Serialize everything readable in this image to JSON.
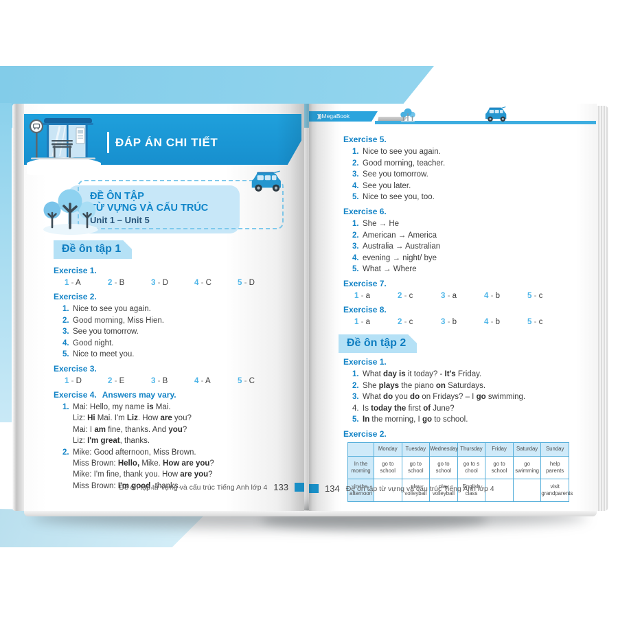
{
  "page_left": {
    "banner_title": "ĐÁP ÁN CHI TIẾT",
    "intro": {
      "line1": "ĐỀ ÔN TẬP",
      "line2": "TỪ VỰNG VÀ CẤU TRÚC",
      "line3": "Unit 1 – Unit 5"
    },
    "section_title": "Đề ôn tập 1",
    "exercises": [
      {
        "title": "Exercise 1.",
        "type": "answers",
        "answers": [
          {
            "n": "1",
            "v": "A"
          },
          {
            "n": "2",
            "v": "B"
          },
          {
            "n": "3",
            "v": "D"
          },
          {
            "n": "4",
            "v": "C"
          },
          {
            "n": "5",
            "v": "D"
          }
        ]
      },
      {
        "title": "Exercise 2.",
        "type": "list",
        "items": [
          {
            "n": "1.",
            "text": "Nice to see you again."
          },
          {
            "n": "2.",
            "text": "Good morning, Miss Hien."
          },
          {
            "n": "3.",
            "text": "See you tomorrow."
          },
          {
            "n": "4.",
            "text": "Good night."
          },
          {
            "n": "5.",
            "text": "Nice to meet you."
          }
        ]
      },
      {
        "title": "Exercise 3.",
        "type": "answers",
        "answers": [
          {
            "n": "1",
            "v": "D"
          },
          {
            "n": "2",
            "v": "E"
          },
          {
            "n": "3",
            "v": "B"
          },
          {
            "n": "4",
            "v": "A"
          },
          {
            "n": "5",
            "v": "C"
          }
        ]
      },
      {
        "title": "Exercise 4.",
        "note": "Answers may vary.",
        "type": "dialog",
        "items": [
          {
            "n": "1.",
            "lines": [
              "Mai: Hello, my name **is** Mai.",
              "Liz: **Hi** Mai. I'm **Liz**. How **are** you?",
              "Mai: I **am** fine, thanks. And **you**?",
              "Liz: **I'm great**, thanks."
            ]
          },
          {
            "n": "2.",
            "lines": [
              "Mike: Good afternoon, Miss Brown.",
              "Miss Brown: **Hello,** Mike. **How are you**?",
              "Mike: I'm fine, thank you. How **are you**?",
              "Miss Brown: **I'm good**, thanks."
            ]
          }
        ]
      }
    ],
    "footer": {
      "text": "Đề ôn tập từ vựng và cấu trúc Tiếng Anh lớp 4",
      "page_number": "133"
    }
  },
  "page_right": {
    "brand_prefix": ")))",
    "brand_name": "MegaBook",
    "exercises_top": [
      {
        "title": "Exercise 5.",
        "type": "list",
        "items": [
          {
            "n": "1.",
            "text": "Nice to see you again."
          },
          {
            "n": "2.",
            "text": "Good morning, teacher."
          },
          {
            "n": "3.",
            "text": "See you tomorrow."
          },
          {
            "n": "4.",
            "text": "See you later."
          },
          {
            "n": "5.",
            "text": "Nice to see you, too."
          }
        ]
      },
      {
        "title": "Exercise 6.",
        "type": "list",
        "items": [
          {
            "n": "1.",
            "text": "She → He"
          },
          {
            "n": "2.",
            "text": "American →  America"
          },
          {
            "n": "3.",
            "text": "Australia →  Australian"
          },
          {
            "n": "4.",
            "text": "evening →  night/ bye"
          },
          {
            "n": "5.",
            "text": "What → Where"
          }
        ]
      },
      {
        "title": "Exercise 7.",
        "type": "answers",
        "answers": [
          {
            "n": "1",
            "v": "a"
          },
          {
            "n": "2",
            "v": "c"
          },
          {
            "n": "3",
            "v": "a"
          },
          {
            "n": "4",
            "v": "b"
          },
          {
            "n": "5",
            "v": "c"
          }
        ]
      },
      {
        "title": "Exercise 8.",
        "type": "answers",
        "answers": [
          {
            "n": "1",
            "v": "a"
          },
          {
            "n": "2",
            "v": "c"
          },
          {
            "n": "3",
            "v": "b"
          },
          {
            "n": "4",
            "v": "b"
          },
          {
            "n": "5",
            "v": "c"
          }
        ]
      }
    ],
    "section_title": "Đề ôn tập 2",
    "exercises_bottom": [
      {
        "title": "Exercise 1.",
        "type": "list",
        "items": [
          {
            "n": "1.",
            "text": "What **day is** it today? - **It's** Friday."
          },
          {
            "n": "2.",
            "text": "She **plays** the piano **on** Saturdays."
          },
          {
            "n": "3.",
            "text": "What **do** you **do** on Fridays? – I **go** swimming."
          },
          {
            "n": "4.",
            "text": "Is **today the** first **of** June?",
            "plain_num": true
          },
          {
            "n": "5.",
            "text": "**In** the morning, I **go** to school."
          }
        ]
      },
      {
        "title": "Exercise 2.",
        "type": "table"
      }
    ],
    "table": {
      "col_headers": [
        "",
        "Monday",
        "Tuesday",
        "Wednesday",
        "Thursday",
        "Friday",
        "Saturday",
        "Sunday"
      ],
      "rows": [
        {
          "label": "In the\nmorning",
          "cells": [
            "go to\nschool",
            "go to\nschool",
            "go to\nschool",
            "go to s\nchool",
            "go to\nschool",
            "go\nswimming",
            "help parents"
          ]
        },
        {
          "label": "In the\nafternoon",
          "cells": [
            "",
            "play\nvolleyball",
            "play\nvolleyball",
            "English\nclass",
            "",
            "",
            "visit\ngrandparents"
          ]
        }
      ]
    },
    "footer": {
      "page_number": "134",
      "text": "Đề ôn tập từ vựng và cấu trúc Tiếng Anh lớp 4"
    }
  },
  "colors": {
    "brand_blue": "#1b9ad6",
    "banner_blue": "#1791cf",
    "label_bg": "#b5e1f6",
    "label_text": "#0e7dc0",
    "answer_number_blue": "#4db5e8",
    "table_border": "#54aeda",
    "table_head_bg": "#cfeaf9"
  }
}
